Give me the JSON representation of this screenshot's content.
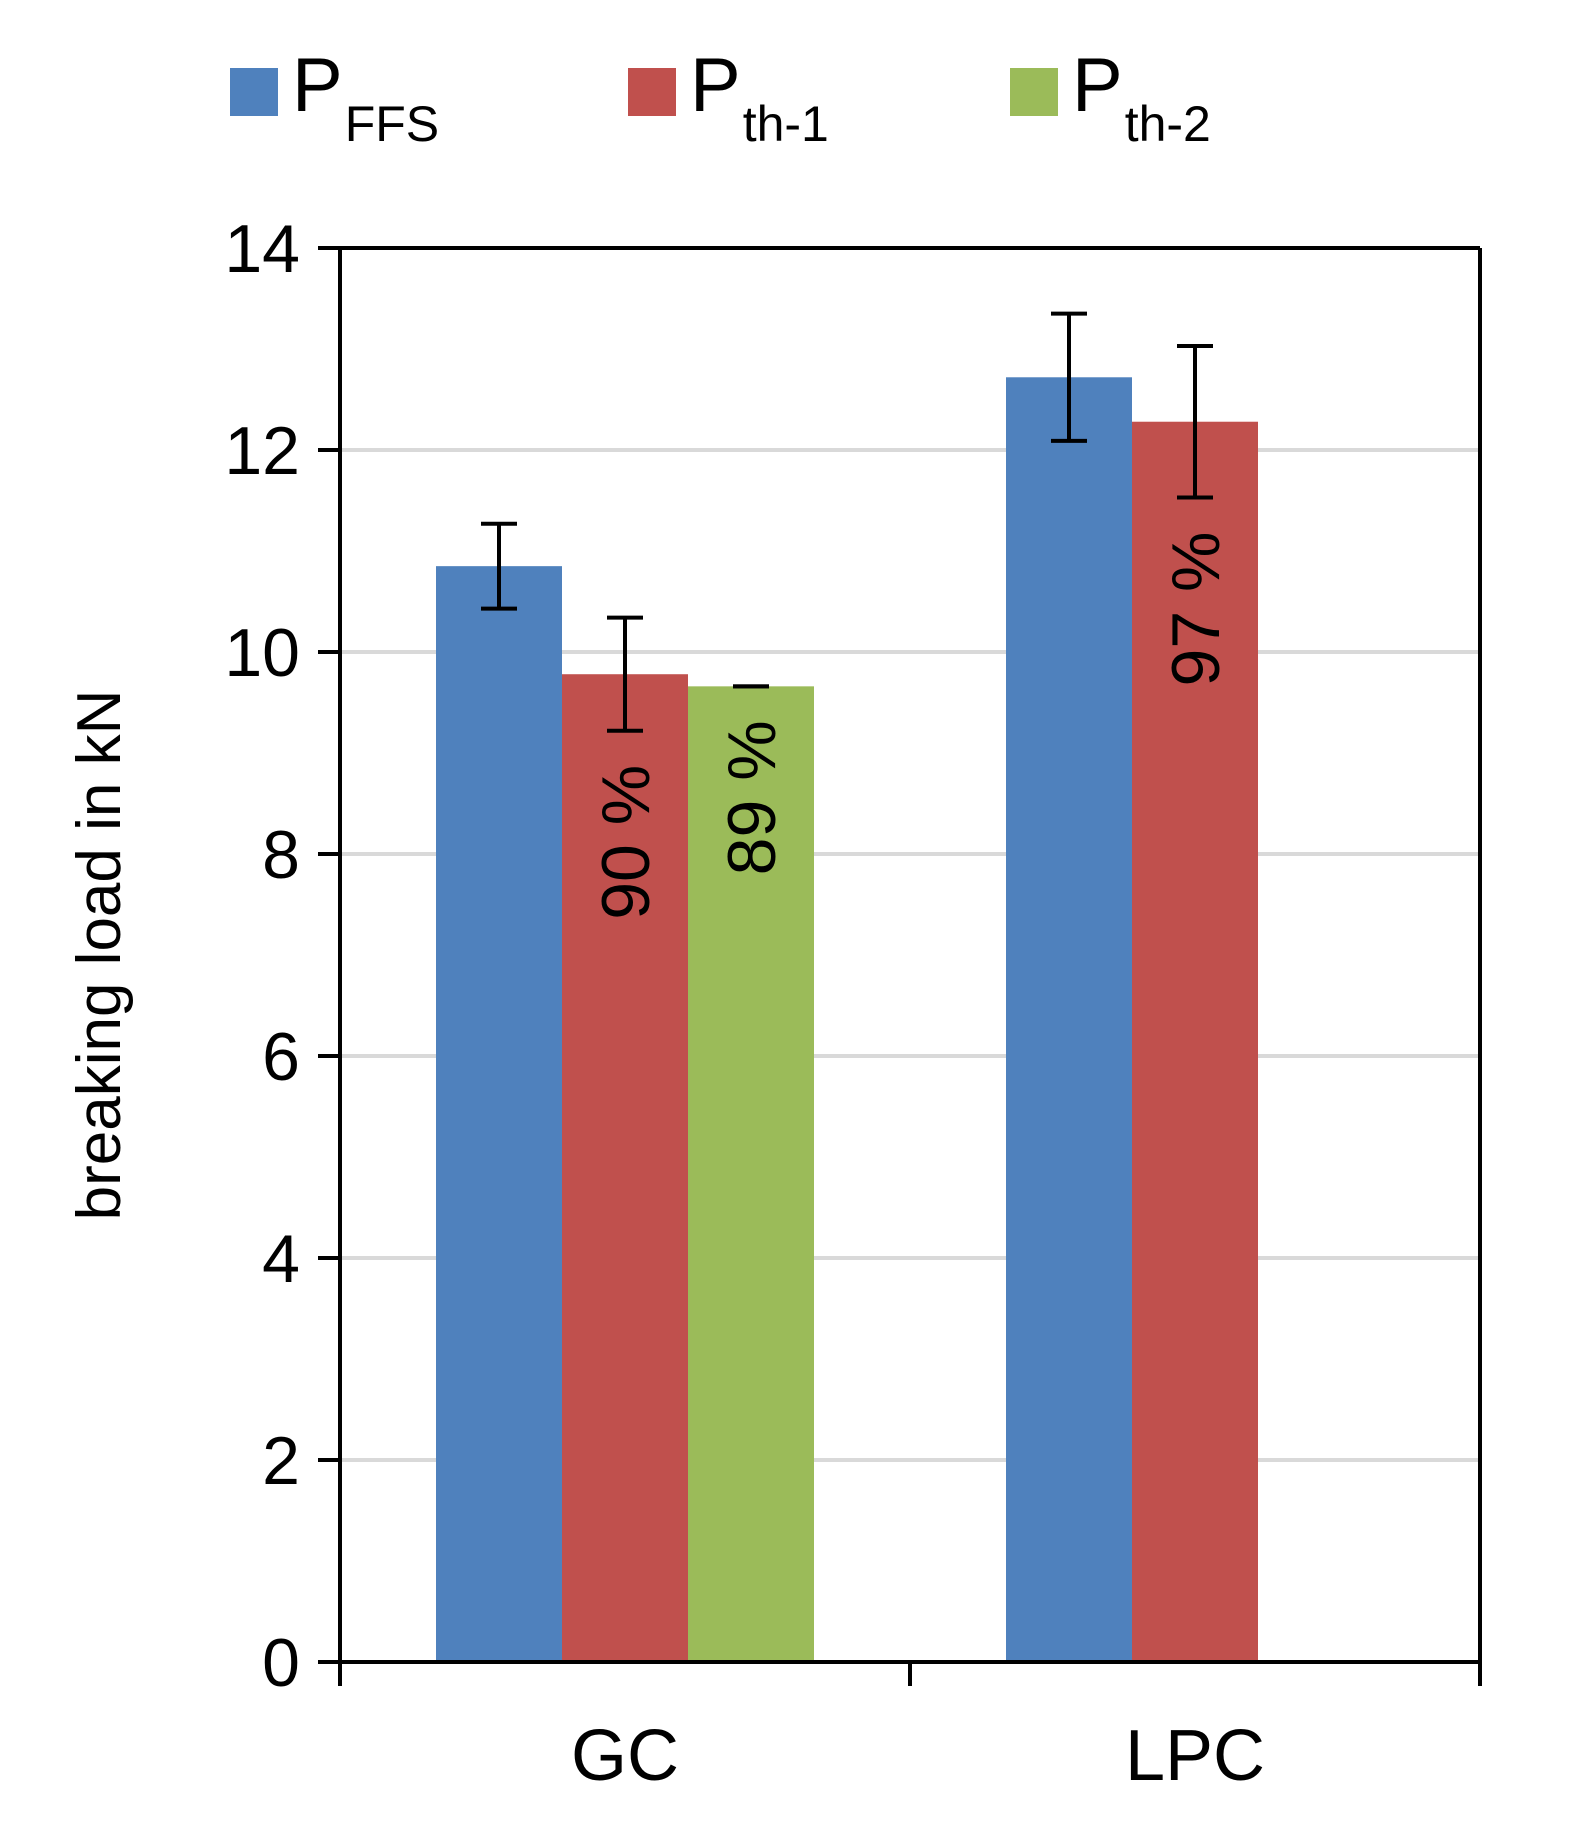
{
  "chart_data": {
    "type": "bar",
    "categories": [
      "GC",
      "LPC"
    ],
    "series": [
      {
        "name": "P",
        "name_sub": "FFS",
        "color": "#4F81BD",
        "values": [
          10.85,
          12.72
        ],
        "error": [
          0.42,
          0.63
        ],
        "labels": [
          "",
          ""
        ]
      },
      {
        "name": "P",
        "name_sub": "th-1",
        "color": "#C0504D",
        "values": [
          9.78,
          12.28
        ],
        "error": [
          0.56,
          0.75
        ],
        "labels": [
          "90 %",
          "97 %"
        ]
      },
      {
        "name": "P",
        "name_sub": "th-2",
        "color": "#9BBB59",
        "values": [
          9.66,
          null
        ],
        "error": [
          0.0,
          null
        ],
        "labels": [
          "89 %",
          ""
        ]
      }
    ],
    "xlabel": "",
    "ylabel": "breaking load in kN",
    "ylim": [
      0,
      14
    ],
    "yticks": [
      "0",
      "2",
      "4",
      "6",
      "8",
      "10",
      "12",
      "14"
    ],
    "grid": true,
    "legend": "top"
  }
}
